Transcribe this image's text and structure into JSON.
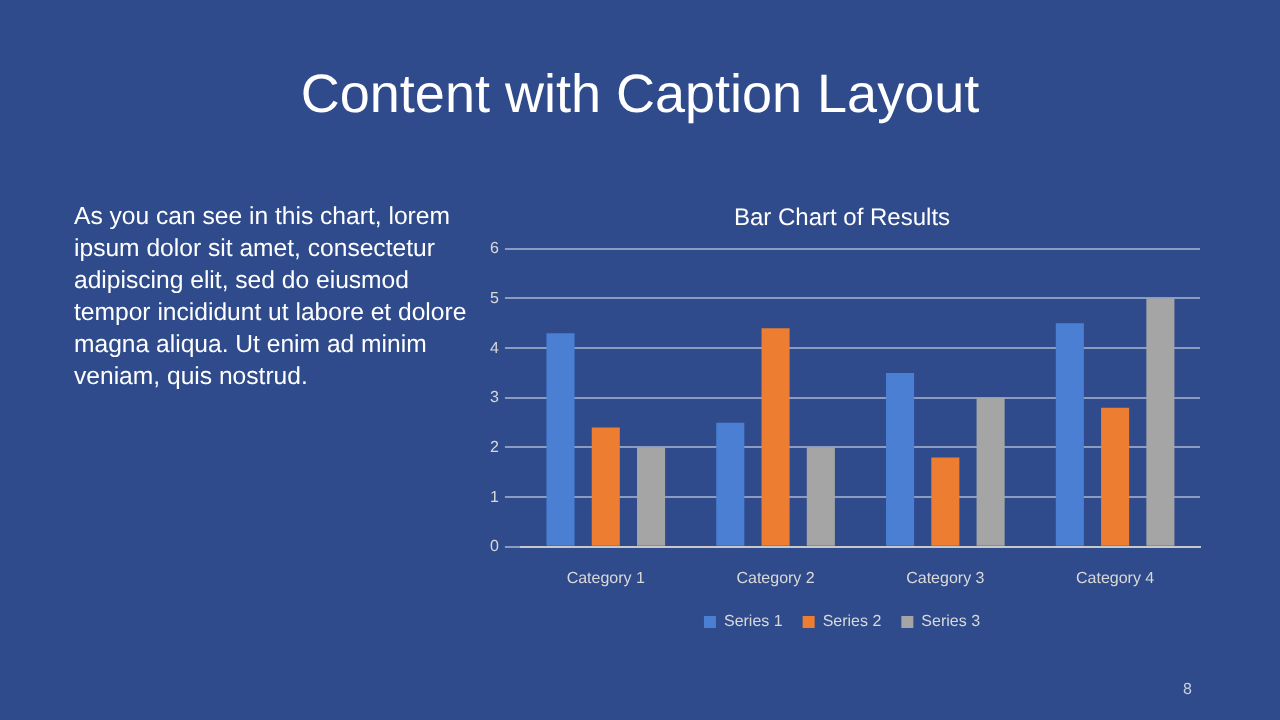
{
  "chart_data": {
    "type": "bar",
    "title": "Content with Caption Layout",
    "subtitle": "Bar Chart of Results",
    "categories": [
      "Category 1",
      "Category 2",
      "Category 3",
      "Category 4"
    ],
    "series": [
      {
        "name": "Series 1",
        "color": "#4a7fd4",
        "values": [
          4.3,
          2.5,
          3.5,
          4.5
        ]
      },
      {
        "name": "Series 2",
        "color": "#ed7d31",
        "values": [
          2.4,
          4.4,
          1.8,
          2.8
        ]
      },
      {
        "name": "Series 3",
        "color": "#a5a5a5",
        "values": [
          2,
          2,
          3,
          5
        ]
      }
    ],
    "ylim": [
      0,
      6
    ],
    "yticks": [
      0,
      1,
      2,
      3,
      4,
      5,
      6
    ],
    "grid": "y",
    "legend": "bottom",
    "annotations": [
      "As you can see in this chart, lorem ipsum dolor sit amet, consectetur adipiscing elit, sed do eiusmod tempor incididunt ut labore et dolore magna aliqua. Ut enim ad minim veniam, quis nostrud.",
      "8"
    ]
  }
}
